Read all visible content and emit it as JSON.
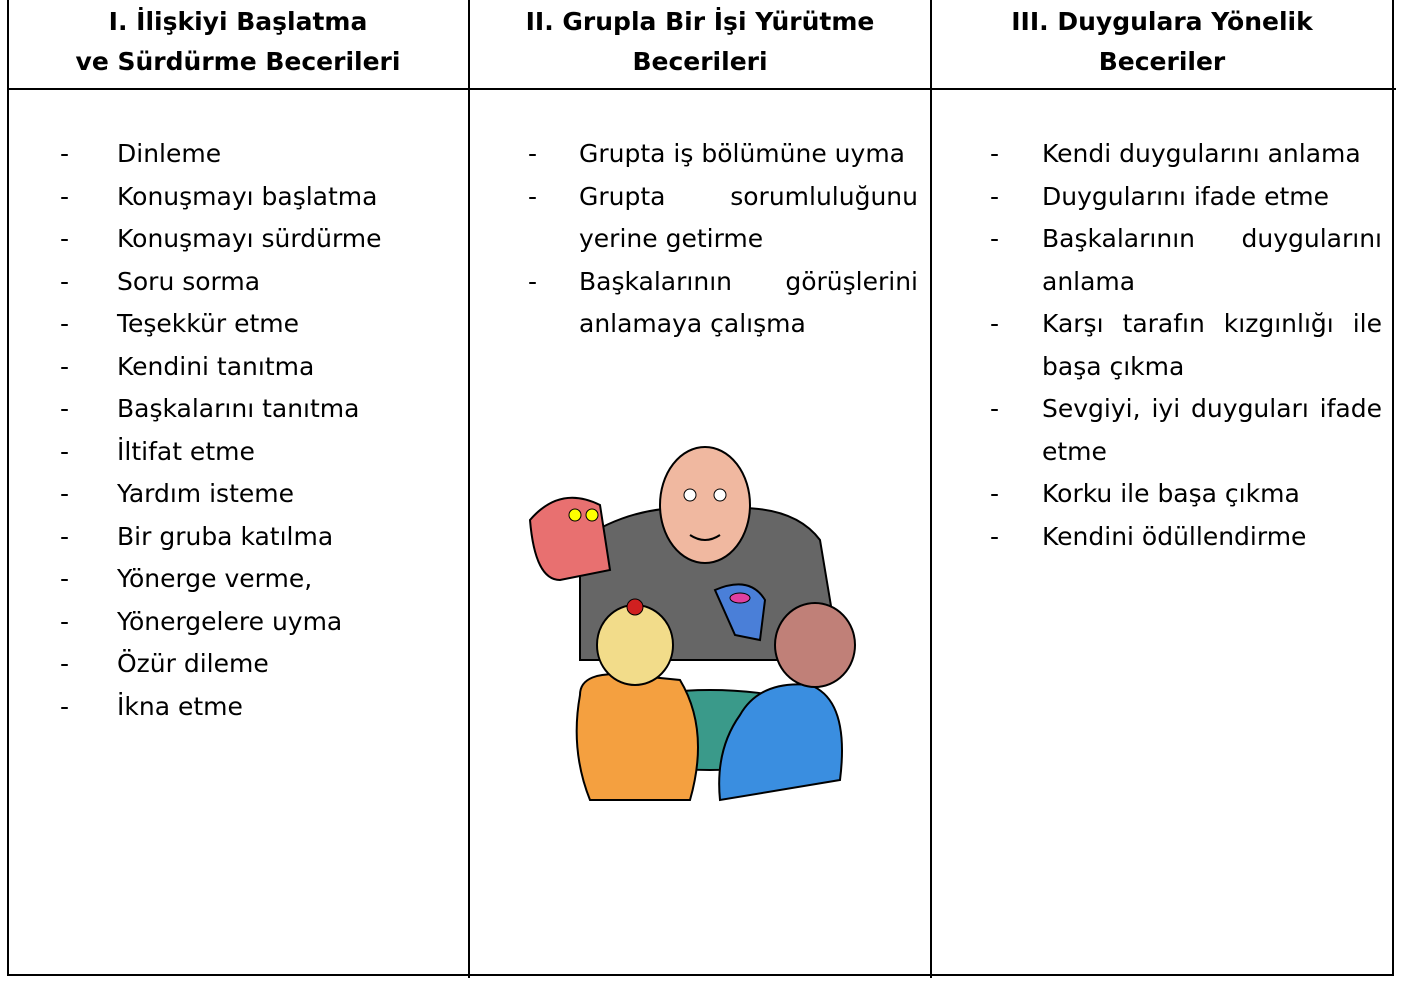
{
  "columns": [
    {
      "title": [
        "I. İlişkiyi Başlatma",
        "ve Sürdürme Becerileri"
      ],
      "items": [
        "Dinleme",
        "Konuşmayı başlatma",
        "Konuşmayı sürdürme",
        "Soru sorma",
        "Teşekkür etme",
        "Kendini tanıtma",
        "Başkalarını tanıtma",
        "İltifat etme",
        "Yardım isteme",
        "Bir gruba katılma",
        "Yönerge verme,",
        "Yönergelere uyma",
        "Özür dileme",
        "İkna etme"
      ]
    },
    {
      "title": [
        "II. Grupla Bir İşi Yürütme",
        "Becerileri"
      ],
      "items": [
        "Grupta iş bölümüne uyma",
        "Grupta sorumluluğunu yerine getirme",
        "Başkalarının görüşlerini anlamaya çalışma"
      ]
    },
    {
      "title": [
        "III. Duygulara Yönelik",
        "Beceriler"
      ],
      "items": [
        "Kendi duygularını anlama",
        "Duygularını ifade etme",
        "Başkalarının duygularını anlama",
        "Karşı tarafın kızgınlığı ile başa çıkma",
        "Sevgiyi, iyi duyguları ifade etme",
        "Korku ile başa çıkma",
        "Kendini ödüllendirme"
      ]
    }
  ]
}
